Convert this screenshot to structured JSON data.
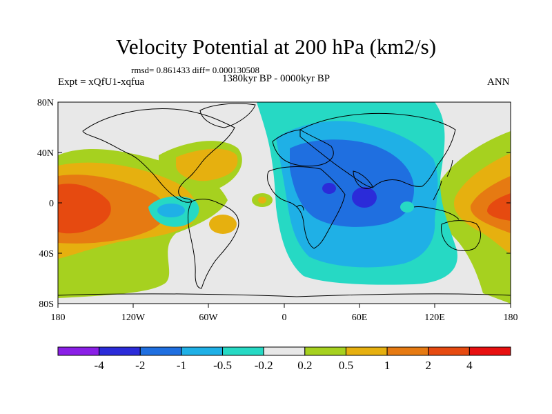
{
  "header": {
    "title": "Velocity Potential at 200 hPa (km2/s)",
    "stats": "rmsd= 0.861433 diff= 0.000130508",
    "experiment": "Expt = xQfU1-xqfua",
    "period": "1380kyr BP - 0000kyr BP",
    "season": "ANN"
  },
  "axes": {
    "lat_labels": [
      "80N",
      "40N",
      "0",
      "40S",
      "80S"
    ],
    "lon_labels": [
      "180",
      "120W",
      "60W",
      "0",
      "60E",
      "120E",
      "180"
    ]
  },
  "colorbar": {
    "labels": [
      "-4",
      "-2",
      "-1",
      "-0.5",
      "-0.2",
      "0.2",
      "0.5",
      "1",
      "2",
      "4"
    ],
    "colors": [
      "#8a1fe6",
      "#2b2bd9",
      "#1f6fe0",
      "#1fb0e6",
      "#26d9c4",
      "#e8e8e8",
      "#a6d11f",
      "#e6b00f",
      "#e67a12",
      "#e64a10",
      "#e81010"
    ]
  },
  "map_palette": {
    "ocean_neutral": "#e8e8e8",
    "coast": "#000000"
  }
}
